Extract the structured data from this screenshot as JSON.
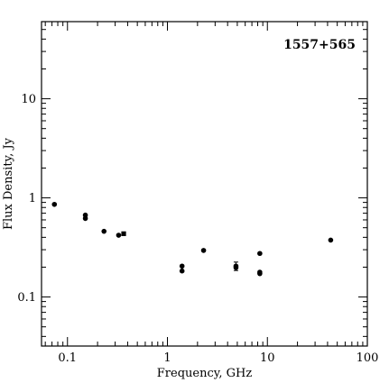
{
  "chart_data": {
    "type": "scatter",
    "title": "1557+565",
    "xlabel": "Frequency, GHz",
    "ylabel": "Flux Density, Jy",
    "xscale": "log",
    "yscale": "log",
    "xlim": [
      0.055,
      100
    ],
    "ylim": [
      0.032,
      60
    ],
    "x_ticks": [
      {
        "value": 0.1,
        "label": "0.1"
      },
      {
        "value": 1,
        "label": "1"
      },
      {
        "value": 10,
        "label": "10"
      },
      {
        "value": 100,
        "label": "100"
      }
    ],
    "y_ticks": [
      {
        "value": 0.1,
        "label": "0.1"
      },
      {
        "value": 1,
        "label": "1"
      },
      {
        "value": 10,
        "label": "10"
      }
    ],
    "series": [
      {
        "marker": "circle",
        "color": "#000000",
        "points": [
          {
            "x": 0.074,
            "y": 0.86
          },
          {
            "x": 0.151,
            "y": 0.67
          },
          {
            "x": 0.151,
            "y": 0.62
          },
          {
            "x": 0.232,
            "y": 0.46
          },
          {
            "x": 0.325,
            "y": 0.42
          },
          {
            "x": 1.4,
            "y": 0.205
          },
          {
            "x": 1.4,
            "y": 0.183
          },
          {
            "x": 2.3,
            "y": 0.295
          },
          {
            "x": 4.85,
            "y": 0.205,
            "yerr": 0.02
          },
          {
            "x": 4.85,
            "y": 0.198
          },
          {
            "x": 8.4,
            "y": 0.275
          },
          {
            "x": 8.4,
            "y": 0.178
          },
          {
            "x": 8.4,
            "y": 0.172
          },
          {
            "x": 43,
            "y": 0.375
          }
        ]
      },
      {
        "marker": "square",
        "color": "#000000",
        "points": [
          {
            "x": 0.365,
            "y": 0.435
          }
        ]
      }
    ]
  }
}
